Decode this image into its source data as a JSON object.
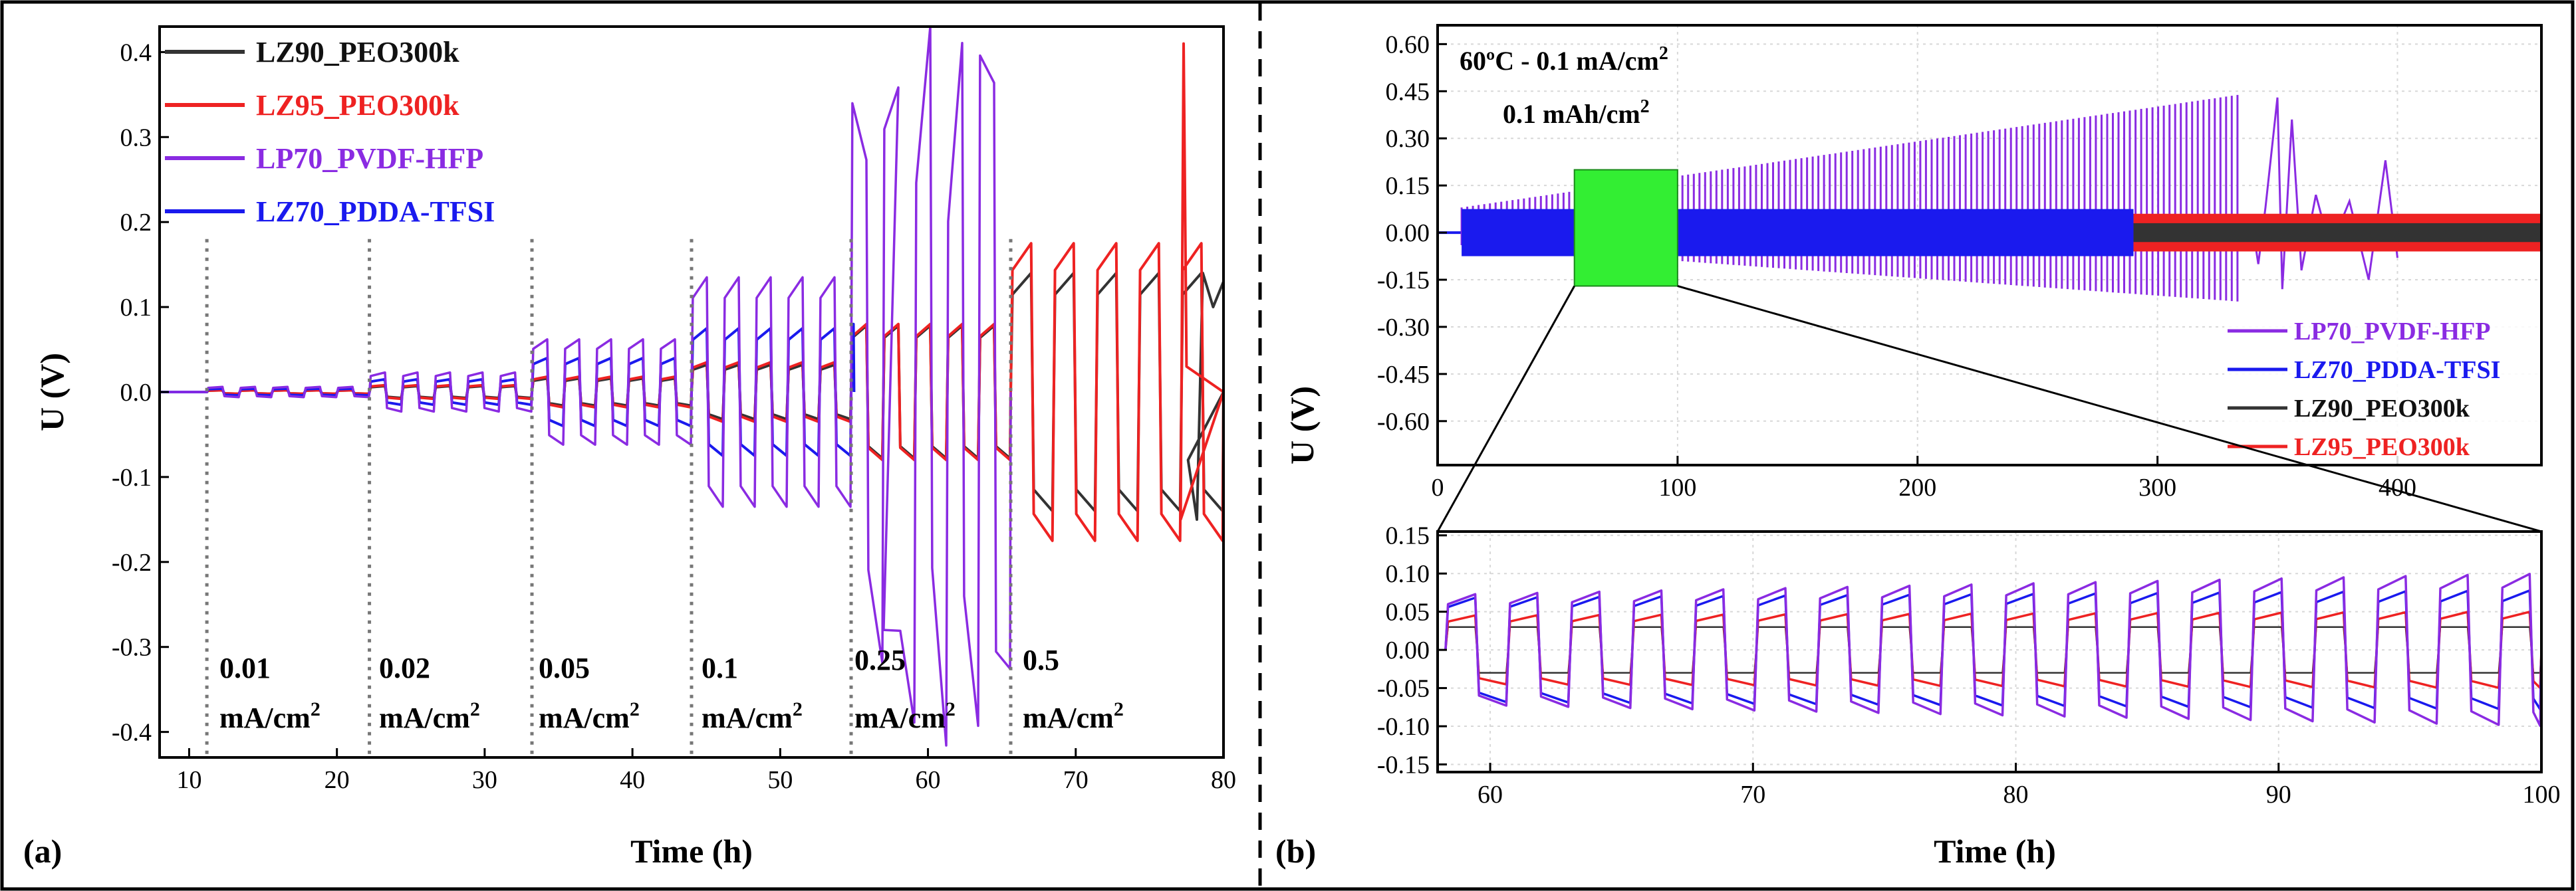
{
  "figure": {
    "panel_a_label": "(a)",
    "panel_b_label": "(b)"
  },
  "colors": {
    "LZ90_PEO300k": "#333333",
    "LZ95_PEO300k": "#ee2222",
    "LP70_PVDF-HFP": "#8a2be2",
    "LZ70_PDDA-TFSI": "#1a1aee",
    "zoom_box": "#33ee33",
    "guide": "#777777"
  },
  "chart_data": [
    {
      "id": "panel-a",
      "type": "line",
      "xlabel": "Time (h)",
      "ylabel": "U (V)",
      "xlim": [
        8,
        80
      ],
      "ylim": [
        -0.43,
        0.43
      ],
      "xticks": [
        10,
        20,
        30,
        40,
        50,
        60,
        70,
        80
      ],
      "yticks": [
        -0.4,
        -0.3,
        -0.2,
        -0.1,
        0.0,
        0.1,
        0.2,
        0.3,
        0.4
      ],
      "ytick_labels": [
        "-0.4",
        "-0.3",
        "-0.2",
        "-0.1",
        "0.0",
        "0.1",
        "0.2",
        "0.3",
        "0.4"
      ],
      "legend": [
        "LZ90_PEO300k",
        "LZ95_PEO300k",
        "LP70_PVDF-HFP",
        "LZ70_PDDA-TFSI"
      ],
      "legend_position": "top-left",
      "step_boundaries_h": [
        11.2,
        22.2,
        33.2,
        44.0,
        54.8,
        65.6
      ],
      "current_steps": [
        {
          "value": "0.01",
          "unit": "mA/cm",
          "sup": "2"
        },
        {
          "value": "0.02",
          "unit": "mA/cm",
          "sup": "2"
        },
        {
          "value": "0.05",
          "unit": "mA/cm",
          "sup": "2"
        },
        {
          "value": "0.1",
          "unit": "mA/cm",
          "sup": "2"
        },
        {
          "value": "0.25",
          "unit": "mA/cm",
          "sup": "2"
        },
        {
          "value": "0.5",
          "unit": "mA/cm",
          "sup": "2"
        }
      ],
      "series": [
        {
          "name": "LP70_PVDF-HFP",
          "amplitude_per_step": [
            0.006,
            0.023,
            0.062,
            0.135,
            0.32,
            null
          ],
          "ends_at_h": 65.6
        },
        {
          "name": "LZ70_PDDA-TFSI",
          "amplitude_per_step": [
            0.004,
            0.015,
            0.04,
            0.075,
            0.08,
            null
          ],
          "ends_at_h": 55.0
        },
        {
          "name": "LZ95_PEO300k",
          "amplitude_per_step": [
            0.002,
            0.008,
            0.018,
            0.035,
            0.08,
            0.175
          ],
          "ends_at_h": 80.0,
          "spike_V": 0.41,
          "spike_at_h": 77.3
        },
        {
          "name": "LZ90_PEO300k",
          "amplitude_per_step": [
            0.002,
            0.007,
            0.016,
            0.032,
            0.078,
            0.14
          ],
          "ends_at_h": 80.0
        }
      ]
    },
    {
      "id": "panel-b-main",
      "type": "line",
      "ylabel": "U (V)",
      "xlim": [
        0,
        460
      ],
      "ylim": [
        -0.74,
        0.66
      ],
      "xticks": [
        0,
        100,
        200,
        300,
        400
      ],
      "yticks": [
        -0.6,
        -0.45,
        -0.3,
        -0.15,
        0.0,
        0.15,
        0.3,
        0.45,
        0.6
      ],
      "ytick_labels": [
        "-0.60",
        "-0.45",
        "-0.30",
        "-0.15",
        "0.00",
        "0.15",
        "0.30",
        "0.45",
        "0.60"
      ],
      "title_line1": "60ºC - 0.1 mA/cm",
      "title_line1_sup": "2",
      "title_line2": "0.1 mAh/cm",
      "title_line2_sup": "2",
      "legend": [
        "LP70_PVDF-HFP",
        "LZ70_PDDA-TFSI",
        "LZ90_PEO300k",
        "LZ95_PEO300k"
      ],
      "legend_position": "bottom-right",
      "zoom_region": {
        "x": [
          57,
          100
        ],
        "y": [
          -0.17,
          0.2
        ]
      },
      "series": [
        {
          "name": "LP70_PVDF-HFP",
          "start_h": 10,
          "end_h": 400,
          "amplitude_start": 0.08,
          "amplitude_end": 0.44
        },
        {
          "name": "LZ70_PDDA-TFSI",
          "start_h": 10,
          "end_h": 290,
          "amplitude": 0.075
        },
        {
          "name": "LZ90_PEO300k",
          "start_h": 290,
          "end_h": 460,
          "amplitude": 0.03
        },
        {
          "name": "LZ95_PEO300k",
          "start_h": 290,
          "end_h": 460,
          "amplitude": 0.06
        }
      ]
    },
    {
      "id": "panel-b-zoom",
      "type": "line",
      "xlabel": "Time (h)",
      "xlim": [
        58,
        100
      ],
      "ylim": [
        -0.16,
        0.155
      ],
      "xticks": [
        60,
        70,
        80,
        90,
        100
      ],
      "yticks": [
        -0.15,
        -0.1,
        -0.05,
        0.0,
        0.05,
        0.1,
        0.15
      ],
      "ytick_labels": [
        "-0.15",
        "-0.10",
        "-0.05",
        "0.00",
        "0.05",
        "0.10",
        "0.15"
      ],
      "cycle_period_h": 2.36,
      "series": [
        {
          "name": "LP70_PVDF-HFP",
          "amplitude_start": 0.072,
          "amplitude_end": 0.1
        },
        {
          "name": "LZ70_PDDA-TFSI",
          "amplitude_start": 0.068,
          "amplitude_end": 0.078
        },
        {
          "name": "LZ95_PEO300k",
          "amplitude_start": 0.045,
          "amplitude_end": 0.05
        },
        {
          "name": "LZ90_PEO300k",
          "amplitude_start": 0.03,
          "amplitude_end": 0.03
        }
      ]
    }
  ]
}
